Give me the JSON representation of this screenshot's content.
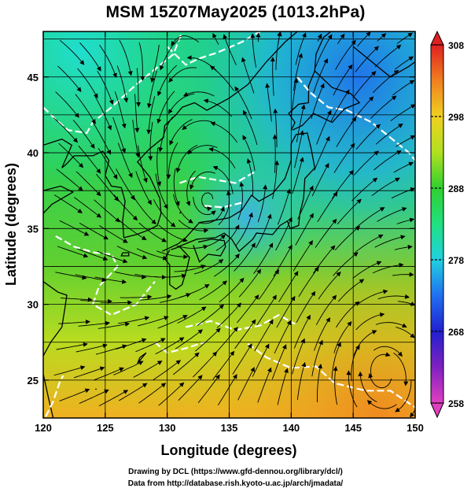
{
  "title": "MSM 15Z07May2025 (1013.2hPa)",
  "map": {
    "lon_range": [
      120,
      150
    ],
    "lat_range": [
      22.5,
      48
    ],
    "lon_ticks": [
      120,
      125,
      130,
      135,
      140,
      145,
      150
    ],
    "lat_ticks": [
      25,
      30,
      35,
      40,
      45
    ],
    "x_label": "Longitude (degrees)",
    "y_label": "Latitude  (degrees)",
    "grid_lon_step": 5,
    "grid_lat_step": 2.5
  },
  "colorbar": {
    "ticks": [
      258,
      268,
      278,
      288,
      298,
      308
    ],
    "min": 258,
    "max": 308,
    "colors": [
      "#e040c0",
      "#8020c0",
      "#2020d0",
      "#2060f0",
      "#20a0f0",
      "#20e0e0",
      "#20e080",
      "#20d040",
      "#60d020",
      "#c0e020",
      "#f0e020",
      "#f0b020",
      "#f07020",
      "#e03020"
    ]
  },
  "credits": {
    "line1": "Drawing by DCL (https://www.gfd-dennou.org/library/dcl/)",
    "line2": "Data from http://database.rish.kyoto-u.ac.jp/arch/jmadata/"
  }
}
